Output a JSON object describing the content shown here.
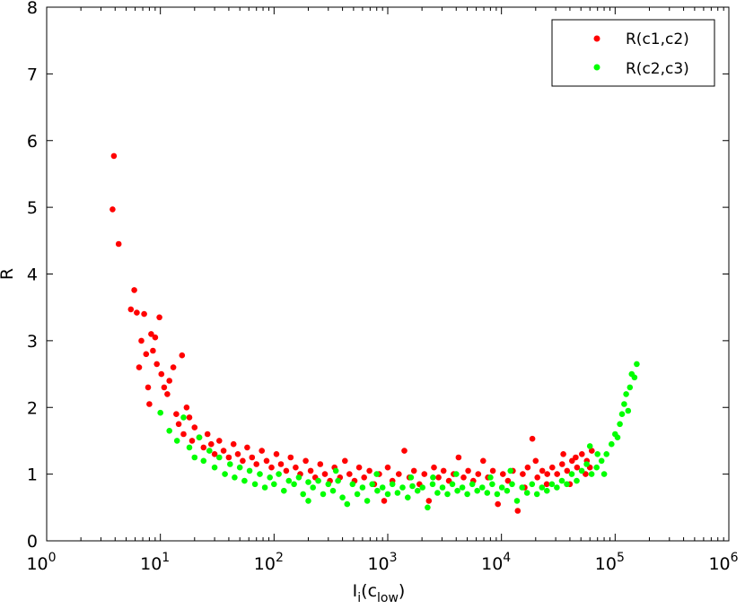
{
  "chart_data": {
    "type": "scatter",
    "title": "",
    "xlabel": {
      "base": "I",
      "sub": "i",
      "paren": "(c",
      "paren_sub": "low",
      "close": ")"
    },
    "ylabel": "R",
    "xscale": "log",
    "xlim": [
      1,
      1000000
    ],
    "ylim": [
      0,
      8
    ],
    "grid": false,
    "legend_position": "top-right",
    "x_ticks": [
      {
        "value": 1,
        "base": "10",
        "exp": "0"
      },
      {
        "value": 10,
        "base": "10",
        "exp": "1"
      },
      {
        "value": 100,
        "base": "10",
        "exp": "2"
      },
      {
        "value": 1000,
        "base": "10",
        "exp": "3"
      },
      {
        "value": 10000,
        "base": "10",
        "exp": "4"
      },
      {
        "value": 100000,
        "base": "10",
        "exp": "5"
      },
      {
        "value": 1000000,
        "base": "10",
        "exp": "6"
      }
    ],
    "y_ticks": [
      "0",
      "1",
      "2",
      "3",
      "4",
      "5",
      "6",
      "7",
      "8"
    ],
    "series": [
      {
        "name": "R(c1,c2)",
        "color": "#ff0000",
        "points": [
          [
            3.8,
            4.97
          ],
          [
            3.9,
            5.77
          ],
          [
            4.3,
            4.45
          ],
          [
            5.5,
            3.47
          ],
          [
            5.9,
            3.76
          ],
          [
            6.2,
            3.42
          ],
          [
            6.5,
            2.6
          ],
          [
            6.8,
            3.0
          ],
          [
            7.2,
            3.4
          ],
          [
            7.5,
            2.8
          ],
          [
            7.8,
            2.3
          ],
          [
            8.0,
            2.05
          ],
          [
            8.3,
            3.1
          ],
          [
            8.6,
            2.85
          ],
          [
            9.0,
            3.05
          ],
          [
            9.3,
            2.65
          ],
          [
            9.8,
            3.35
          ],
          [
            10.2,
            2.5
          ],
          [
            10.8,
            2.3
          ],
          [
            11.5,
            2.2
          ],
          [
            12.0,
            2.4
          ],
          [
            13.0,
            2.6
          ],
          [
            13.8,
            1.9
          ],
          [
            14.5,
            1.75
          ],
          [
            15.5,
            2.78
          ],
          [
            16.0,
            1.6
          ],
          [
            17.0,
            2.0
          ],
          [
            18.0,
            1.85
          ],
          [
            19.0,
            1.5
          ],
          [
            20.0,
            1.7
          ],
          [
            22.0,
            1.55
          ],
          [
            24.0,
            1.4
          ],
          [
            26.0,
            1.6
          ],
          [
            28.0,
            1.45
          ],
          [
            30.0,
            1.3
          ],
          [
            33.0,
            1.5
          ],
          [
            36.0,
            1.35
          ],
          [
            40.0,
            1.25
          ],
          [
            44.0,
            1.45
          ],
          [
            48.0,
            1.3
          ],
          [
            53.0,
            1.2
          ],
          [
            58.0,
            1.4
          ],
          [
            64.0,
            1.25
          ],
          [
            70.0,
            1.15
          ],
          [
            78.0,
            1.35
          ],
          [
            86.0,
            1.2
          ],
          [
            95.0,
            1.1
          ],
          [
            105.0,
            1.3
          ],
          [
            115.0,
            1.15
          ],
          [
            128.0,
            1.05
          ],
          [
            140.0,
            1.25
          ],
          [
            155.0,
            1.1
          ],
          [
            170.0,
            1.0
          ],
          [
            190.0,
            1.2
          ],
          [
            210.0,
            1.05
          ],
          [
            230.0,
            0.95
          ],
          [
            255.0,
            1.15
          ],
          [
            280.0,
            1.0
          ],
          [
            310.0,
            0.9
          ],
          [
            340.0,
            1.1
          ],
          [
            380.0,
            0.95
          ],
          [
            420.0,
            1.2
          ],
          [
            460.0,
            1.0
          ],
          [
            510.0,
            0.9
          ],
          [
            560.0,
            1.1
          ],
          [
            620.0,
            0.95
          ],
          [
            690.0,
            1.05
          ],
          [
            760.0,
            0.85
          ],
          [
            840.0,
            1.0
          ],
          [
            930.0,
            0.6
          ],
          [
            1000.0,
            1.1
          ],
          [
            1100.0,
            0.9
          ],
          [
            1250.0,
            1.0
          ],
          [
            1400.0,
            1.35
          ],
          [
            1550.0,
            0.95
          ],
          [
            1700.0,
            1.05
          ],
          [
            1900.0,
            0.85
          ],
          [
            2100.0,
            1.0
          ],
          [
            2300.0,
            0.6
          ],
          [
            2550.0,
            1.1
          ],
          [
            2800.0,
            0.95
          ],
          [
            3100.0,
            1.05
          ],
          [
            3450.0,
            0.9
          ],
          [
            3800.0,
            1.0
          ],
          [
            4200.0,
            1.25
          ],
          [
            4650.0,
            0.95
          ],
          [
            5100.0,
            1.05
          ],
          [
            5650.0,
            0.9
          ],
          [
            6250.0,
            1.0
          ],
          [
            6900.0,
            1.2
          ],
          [
            7600.0,
            0.95
          ],
          [
            8400.0,
            1.05
          ],
          [
            9300.0,
            0.55
          ],
          [
            10300.0,
            1.0
          ],
          [
            11400.0,
            0.9
          ],
          [
            12600.0,
            1.05
          ],
          [
            13900.0,
            0.45
          ],
          [
            15400.0,
            1.0
          ],
          [
            17000.0,
            1.1
          ],
          [
            18700.0,
            1.53
          ],
          [
            20700.0,
            0.95
          ],
          [
            22900.0,
            1.05
          ],
          [
            25300.0,
            1.0
          ],
          [
            28000.0,
            1.1
          ],
          [
            30900.0,
            1.0
          ],
          [
            34200.0,
            1.15
          ],
          [
            37800.0,
            1.05
          ],
          [
            41800.0,
            1.2
          ],
          [
            46200.0,
            1.1
          ],
          [
            51000.0,
            1.3
          ],
          [
            56400.0,
            1.2
          ],
          [
            62300.0,
            1.35
          ],
          [
            55000.0,
            1.0
          ],
          [
            60000.0,
            1.1
          ],
          [
            45000.0,
            1.25
          ],
          [
            40000.0,
            0.85
          ],
          [
            35000.0,
            1.3
          ],
          [
            25000.0,
            0.85
          ],
          [
            20000.0,
            1.2
          ],
          [
            16000.0,
            0.8
          ]
        ]
      },
      {
        "name": "R(c2,c3)",
        "color": "#00ff00",
        "points": [
          [
            10.0,
            1.92
          ],
          [
            12.0,
            1.65
          ],
          [
            14.0,
            1.5
          ],
          [
            16.0,
            1.85
          ],
          [
            18.0,
            1.4
          ],
          [
            20.0,
            1.25
          ],
          [
            22.0,
            1.55
          ],
          [
            24.0,
            1.2
          ],
          [
            27.0,
            1.35
          ],
          [
            30.0,
            1.1
          ],
          [
            33.0,
            1.25
          ],
          [
            37.0,
            1.0
          ],
          [
            41.0,
            1.15
          ],
          [
            45.0,
            0.95
          ],
          [
            50.0,
            1.1
          ],
          [
            55.0,
            0.9
          ],
          [
            61.0,
            1.05
          ],
          [
            68.0,
            0.85
          ],
          [
            75.0,
            1.0
          ],
          [
            83.0,
            0.8
          ],
          [
            92.0,
            0.95
          ],
          [
            100.0,
            0.85
          ],
          [
            110.0,
            1.0
          ],
          [
            122.0,
            0.75
          ],
          [
            135.0,
            0.9
          ],
          [
            150.0,
            0.85
          ],
          [
            165.0,
            0.95
          ],
          [
            180.0,
            0.7
          ],
          [
            200.0,
            0.88
          ],
          [
            220.0,
            0.8
          ],
          [
            245.0,
            0.9
          ],
          [
            270.0,
            0.7
          ],
          [
            300.0,
            0.85
          ],
          [
            330.0,
            0.75
          ],
          [
            365.0,
            0.9
          ],
          [
            400.0,
            0.65
          ],
          [
            440.0,
            0.55
          ],
          [
            490.0,
            0.85
          ],
          [
            540.0,
            0.7
          ],
          [
            600.0,
            0.8
          ],
          [
            660.0,
            0.6
          ],
          [
            730.0,
            0.85
          ],
          [
            810.0,
            0.75
          ],
          [
            900.0,
            0.8
          ],
          [
            1000.0,
            0.7
          ],
          [
            1100.0,
            0.85
          ],
          [
            1220.0,
            0.72
          ],
          [
            1350.0,
            0.8
          ],
          [
            1500.0,
            0.65
          ],
          [
            1650.0,
            0.82
          ],
          [
            1830.0,
            0.75
          ],
          [
            2020.0,
            0.8
          ],
          [
            2240.0,
            0.5
          ],
          [
            2480.0,
            0.85
          ],
          [
            2740.0,
            0.72
          ],
          [
            3030.0,
            0.8
          ],
          [
            3350.0,
            0.7
          ],
          [
            3700.0,
            0.85
          ],
          [
            4100.0,
            0.75
          ],
          [
            4530.0,
            0.8
          ],
          [
            5010.0,
            0.7
          ],
          [
            5540.0,
            0.85
          ],
          [
            6130.0,
            0.75
          ],
          [
            6780.0,
            0.8
          ],
          [
            7500.0,
            0.72
          ],
          [
            8290.0,
            0.85
          ],
          [
            9170.0,
            0.7
          ],
          [
            10100.0,
            0.8
          ],
          [
            11200.0,
            0.75
          ],
          [
            12400.0,
            0.85
          ],
          [
            13700.0,
            0.6
          ],
          [
            15200.0,
            0.8
          ],
          [
            16800.0,
            0.72
          ],
          [
            18600.0,
            0.85
          ],
          [
            20500.0,
            0.7
          ],
          [
            22700.0,
            0.8
          ],
          [
            25100.0,
            0.75
          ],
          [
            27800.0,
            0.85
          ],
          [
            30700.0,
            0.8
          ],
          [
            34000.0,
            0.9
          ],
          [
            37600.0,
            0.85
          ],
          [
            41500.0,
            1.0
          ],
          [
            45900.0,
            0.9
          ],
          [
            50800.0,
            1.05
          ],
          [
            56200.0,
            1.15
          ],
          [
            60000.0,
            1.42
          ],
          [
            62100.0,
            1.0
          ],
          [
            68700.0,
            1.1
          ],
          [
            76000.0,
            1.2
          ],
          [
            84000.0,
            1.3
          ],
          [
            92900.0,
            1.45
          ],
          [
            100000.0,
            1.6
          ],
          [
            105000.0,
            1.55
          ],
          [
            110000.0,
            1.75
          ],
          [
            115000.0,
            1.9
          ],
          [
            120000.0,
            2.05
          ],
          [
            125000.0,
            2.2
          ],
          [
            130000.0,
            1.95
          ],
          [
            135000.0,
            2.3
          ],
          [
            140000.0,
            2.5
          ],
          [
            148000.0,
            2.45
          ],
          [
            155000.0,
            2.65
          ],
          [
            80000.0,
            1.0
          ],
          [
            70000.0,
            1.3
          ],
          [
            200.0,
            0.6
          ],
          [
            350.0,
            1.05
          ],
          [
            800.0,
            1.0
          ],
          [
            1600.0,
            0.95
          ],
          [
            2500.0,
            0.95
          ],
          [
            4000.0,
            1.0
          ],
          [
            8000.0,
            0.95
          ],
          [
            12000.0,
            1.05
          ]
        ]
      }
    ]
  }
}
